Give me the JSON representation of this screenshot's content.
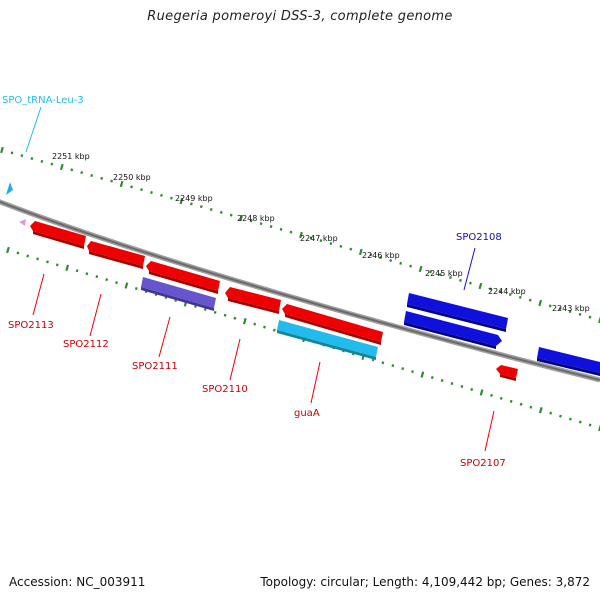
{
  "title": "Ruegeria pomeroyi DSS-3, complete genome",
  "footer": {
    "accession": "Accession: NC_003911",
    "stats": "Topology: circular; Length: 4,109,442 bp; Genes: 3,872"
  },
  "colors": {
    "forward": "#ee0000",
    "reverse": "#1010dd",
    "rna": "#22bbee",
    "other": "#6655cc",
    "backbone": "#808080",
    "ticks": "#2e8b2e"
  },
  "scale_ticks": [
    "2251 kbp",
    "2250 kbp",
    "2249 kbp",
    "2248 kbp",
    "2247 kbp",
    "2246 kbp",
    "2245 kbp",
    "2244 kbp",
    "2243 kbp"
  ],
  "labels": {
    "trna": "SPO_tRNA-Leu-3",
    "spo2113": "SPO2113",
    "spo2112": "SPO2112",
    "spo2111": "SPO2111",
    "spo2110": "SPO2110",
    "guaA": "guaA",
    "spo2108": "SPO2108",
    "spo2107": "SPO2107"
  }
}
